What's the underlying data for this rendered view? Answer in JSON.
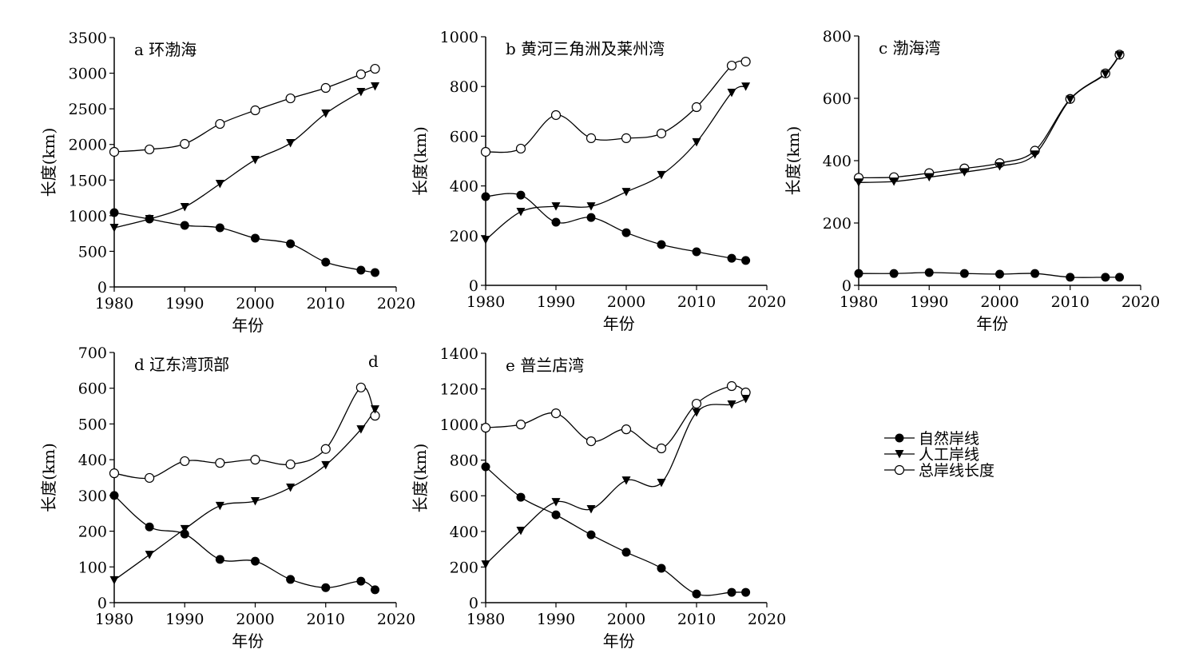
{
  "chart_data": [
    {
      "type": "line",
      "title": "a 环渤海",
      "xlabel": "年份",
      "ylabel": "长度(km)",
      "xlim": [
        1980,
        2020
      ],
      "ylim": [
        0,
        3500
      ],
      "xticks": [
        1980,
        1990,
        2000,
        2010,
        2020
      ],
      "yticks": [
        0,
        500,
        1000,
        1500,
        2000,
        2500,
        3000,
        3500
      ],
      "x": [
        1980,
        1985,
        1990,
        1995,
        2000,
        2005,
        2010,
        2015,
        2017
      ],
      "series": [
        {
          "name": "自然岸线",
          "values": [
            1043,
            953,
            864,
            830,
            684,
            606,
            348,
            236,
            202
          ]
        },
        {
          "name": "人工岸线",
          "values": [
            830,
            953,
            1122,
            1447,
            1784,
            2019,
            2434,
            2737,
            2816
          ]
        },
        {
          "name": "总岸线长度",
          "values": [
            1896,
            1930,
            2008,
            2288,
            2479,
            2647,
            2793,
            2984,
            3062
          ]
        }
      ]
    },
    {
      "type": "line",
      "title": "b 黄河三角洲及莱州湾",
      "xlabel": "年份",
      "ylabel": "长度(km)",
      "xlim": [
        1980,
        2020
      ],
      "ylim": [
        0,
        1000
      ],
      "xticks": [
        1980,
        1990,
        2000,
        2010,
        2020
      ],
      "yticks": [
        0,
        200,
        400,
        600,
        800,
        1000
      ],
      "x": [
        1980,
        1985,
        1990,
        1995,
        2000,
        2005,
        2010,
        2015,
        2017
      ],
      "series": [
        {
          "name": "自然岸线",
          "values": [
            357,
            363,
            254,
            273,
            212,
            164,
            135,
            109,
            100
          ]
        },
        {
          "name": "人工岸线",
          "values": [
            183,
            296,
            318,
            318,
            376,
            444,
            576,
            775,
            800
          ]
        },
        {
          "name": "总岸线长度",
          "values": [
            537,
            550,
            685,
            592,
            592,
            611,
            717,
            884,
            900
          ]
        }
      ]
    },
    {
      "type": "line",
      "title": "c 渤海湾",
      "xlabel": "年份",
      "ylabel": "长度(km)",
      "xlim": [
        1980,
        2020
      ],
      "ylim": [
        0,
        800
      ],
      "xticks": [
        1980,
        1990,
        2000,
        2010,
        2020
      ],
      "yticks": [
        0,
        200,
        400,
        600,
        800
      ],
      "x": [
        1980,
        1985,
        1990,
        1995,
        2000,
        2005,
        2010,
        2015,
        2017
      ],
      "series": [
        {
          "name": "自然岸线",
          "values": [
            38,
            38,
            41,
            38,
            36,
            38,
            26,
            26,
            26
          ]
        },
        {
          "name": "人工岸线",
          "values": [
            330,
            333,
            347,
            363,
            382,
            420,
            596,
            678,
            738
          ]
        },
        {
          "name": "总岸线长度",
          "values": [
            345,
            347,
            360,
            375,
            392,
            432,
            598,
            680,
            740
          ]
        }
      ]
    },
    {
      "type": "line",
      "title": "d 辽东湾顶部",
      "annotation": "d",
      "xlabel": "年份",
      "ylabel": "长度(km)",
      "xlim": [
        1980,
        2020
      ],
      "ylim": [
        0,
        700
      ],
      "xticks": [
        1980,
        1990,
        2000,
        2010,
        2020
      ],
      "yticks": [
        0,
        100,
        200,
        300,
        400,
        500,
        600,
        700
      ],
      "x": [
        1980,
        1985,
        1990,
        1995,
        2000,
        2005,
        2010,
        2015,
        2017
      ],
      "series": [
        {
          "name": "自然岸线",
          "values": [
            300,
            212,
            192,
            121,
            116,
            65,
            42,
            60,
            36
          ]
        },
        {
          "name": "人工岸线",
          "values": [
            63,
            134,
            206,
            271,
            284,
            322,
            385,
            485,
            541
          ]
        },
        {
          "name": "总岸线长度",
          "values": [
            362,
            349,
            396,
            391,
            400,
            387,
            430,
            602,
            523
          ]
        }
      ]
    },
    {
      "type": "line",
      "title": "e 普兰店湾",
      "xlabel": "年份",
      "ylabel": "长度(km)",
      "xlim": [
        1980,
        2020
      ],
      "ylim": [
        0,
        1400
      ],
      "xticks": [
        1980,
        1990,
        2000,
        2010,
        2020
      ],
      "yticks": [
        0,
        200,
        400,
        600,
        800,
        1000,
        1200,
        1400
      ],
      "x": [
        1980,
        1985,
        1990,
        1995,
        2000,
        2005,
        2010,
        2015,
        2017
      ],
      "series": [
        {
          "name": "自然岸线",
          "values": [
            763,
            592,
            493,
            381,
            283,
            193,
            49,
            58,
            58
          ]
        },
        {
          "name": "人工岸线",
          "values": [
            215,
            404,
            565,
            525,
            686,
            673,
            1068,
            1113,
            1144
          ]
        },
        {
          "name": "总岸线长度",
          "values": [
            982,
            1000,
            1063,
            906,
            973,
            866,
            1117,
            1216,
            1180
          ]
        }
      ]
    }
  ],
  "legend": {
    "placement": "right",
    "items": [
      "自然岸线",
      "人工岸线",
      "总岸线长度"
    ]
  }
}
